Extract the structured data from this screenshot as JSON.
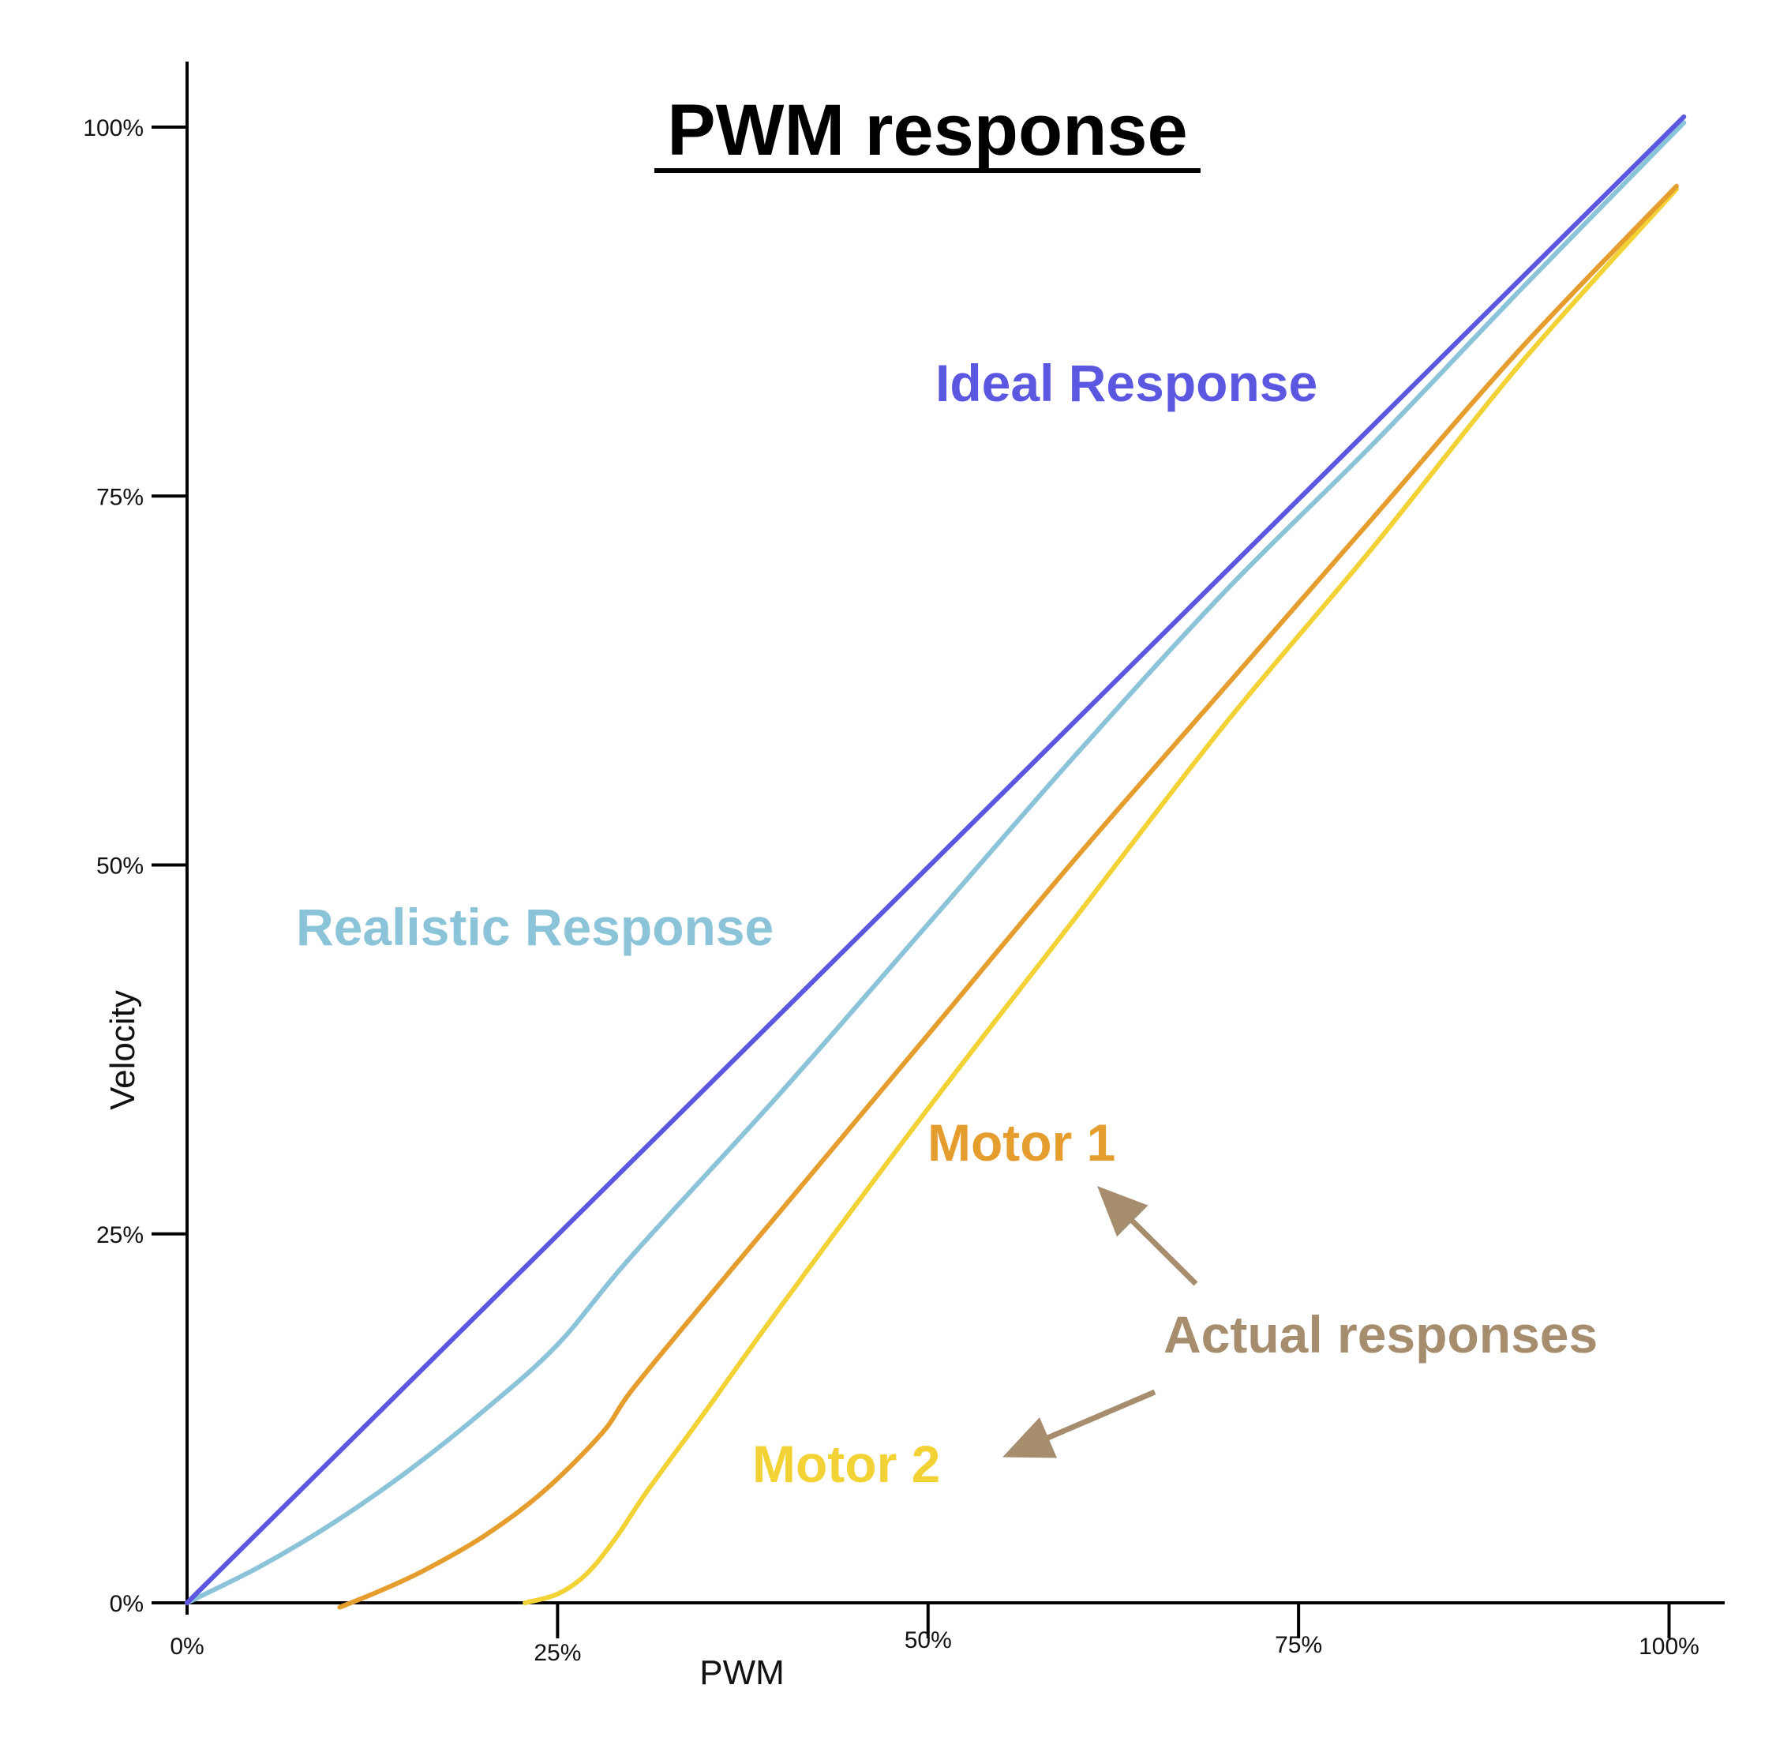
{
  "chart_data": {
    "type": "line",
    "title": "PWM response",
    "xlabel": "PWM",
    "ylabel": "Velocity",
    "xlim": [
      0,
      104
    ],
    "ylim": [
      0,
      104
    ],
    "grid": false,
    "x_ticks": [
      "0%",
      "25%",
      "50%",
      "75%",
      "100%"
    ],
    "y_ticks": [
      "0%",
      "25%",
      "50%",
      "75%",
      "100%"
    ],
    "series": [
      {
        "name": "Ideal Response",
        "color": "#5b57e0",
        "points": [
          [
            0,
            0
          ],
          [
            101,
            100.7
          ]
        ]
      },
      {
        "name": "Realistic Response",
        "color": "#8bc3d9",
        "points": [
          [
            0,
            0
          ],
          [
            5,
            2.5
          ],
          [
            10,
            5.5
          ],
          [
            15,
            9
          ],
          [
            20,
            13
          ],
          [
            25,
            17.5
          ],
          [
            30,
            23.5
          ],
          [
            40,
            34.5
          ],
          [
            50,
            46
          ],
          [
            60,
            57.5
          ],
          [
            70,
            68.5
          ],
          [
            80,
            78.5
          ],
          [
            90,
            89
          ],
          [
            101,
            100.3
          ]
        ]
      },
      {
        "name": "Motor 1",
        "color": "#e59d2e",
        "points": [
          [
            10.3,
            -0.3
          ],
          [
            13,
            0.8
          ],
          [
            16,
            2.2
          ],
          [
            20,
            4.5
          ],
          [
            24,
            7.5
          ],
          [
            28,
            11.5
          ],
          [
            30,
            14.4
          ],
          [
            35,
            20.5
          ],
          [
            40,
            26.5
          ],
          [
            50,
            38.5
          ],
          [
            60,
            50.5
          ],
          [
            70,
            62
          ],
          [
            80,
            73.5
          ],
          [
            90,
            85
          ],
          [
            100.5,
            96
          ]
        ]
      },
      {
        "name": "Motor 2",
        "color": "#f2d235",
        "points": [
          [
            22.8,
            0
          ],
          [
            25,
            0.6
          ],
          [
            27,
            2
          ],
          [
            29,
            4.5
          ],
          [
            31,
            7.5
          ],
          [
            35,
            13
          ],
          [
            40,
            20
          ],
          [
            50,
            33.5
          ],
          [
            60,
            46.5
          ],
          [
            70,
            59.5
          ],
          [
            80,
            71.5
          ],
          [
            90,
            84
          ],
          [
            100.5,
            95.8
          ]
        ]
      }
    ],
    "annotations": [
      {
        "text": "Ideal Response",
        "color": "#5b57e0"
      },
      {
        "text": "Realistic Response",
        "color": "#8bc3d9"
      },
      {
        "text": "Motor 1",
        "color": "#e59d2e"
      },
      {
        "text": "Motor 2",
        "color": "#f2d235"
      },
      {
        "text": "Actual responses",
        "color": "#a58d6e"
      }
    ]
  }
}
